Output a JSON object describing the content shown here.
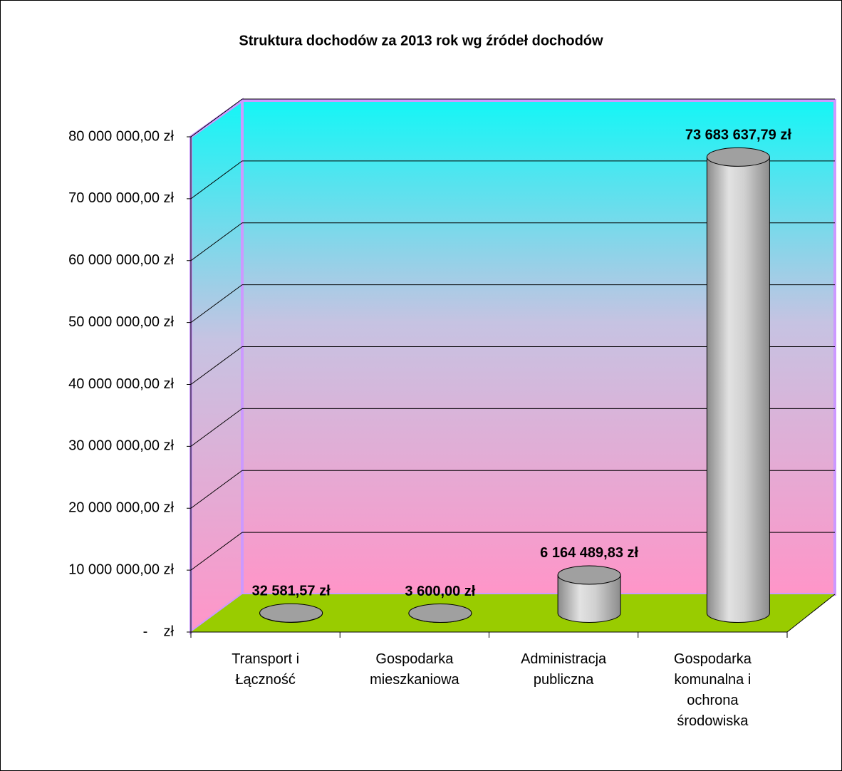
{
  "chart_data": {
    "type": "bar",
    "title": "Struktura dochodów za 2013 rok wg źródeł dochodów",
    "categories": [
      "Transport i Łączność",
      "Gospodarka mieszkaniowa",
      "Administracja publiczna",
      "Gospodarka komunalna i ochrona środowiska"
    ],
    "values": [
      32581.57,
      3600,
      6164489.83,
      73683637.79
    ],
    "value_labels": [
      "32 581,57 zł",
      "3 600,00 zł",
      "6 164 489,83 zł",
      "73 683 637,79 zł"
    ],
    "color": "#c0c0c0",
    "ylim": [
      0,
      80000000
    ],
    "yticks": [
      {
        "value": 0,
        "label": "-    zł"
      },
      {
        "value": 10000000,
        "label": "10 000 000,00 zł"
      },
      {
        "value": 20000000,
        "label": "20 000 000,00 zł"
      },
      {
        "value": 30000000,
        "label": "30 000 000,00 zł"
      },
      {
        "value": 40000000,
        "label": "40 000 000,00 zł"
      },
      {
        "value": 50000000,
        "label": "50 000 000,00 zł"
      },
      {
        "value": 60000000,
        "label": "60 000 000,00 zł"
      },
      {
        "value": 70000000,
        "label": "70 000 000,00 zł"
      },
      {
        "value": 80000000,
        "label": "80 000 000,00 zł"
      }
    ],
    "grid": true
  }
}
